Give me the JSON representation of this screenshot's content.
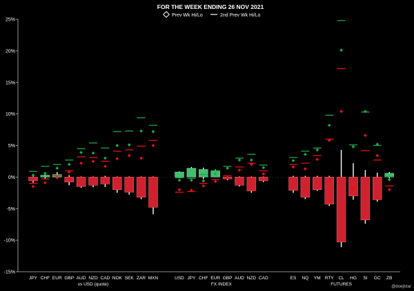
{
  "chart_data": {
    "type": "bar",
    "title": "FOR THE WEEK ENDING  26 NOV 2021",
    "legend": [
      {
        "symbol": "diamond-icon",
        "label": "Prev Wk Hi/Lo"
      },
      {
        "symbol": "dash-icon",
        "label": "2nd Prev Wk Hi/Lo"
      }
    ],
    "ylim": [
      -15,
      25
    ],
    "yticks": [
      -15,
      -10,
      -5,
      0,
      5,
      10,
      15,
      20,
      25
    ],
    "ytick_suffix": "%",
    "grid": false,
    "groups": [
      {
        "name": "vs USD (quote)",
        "items": [
          {
            "label": "JPY",
            "value": -0.6,
            "wick": [
              -0.9,
              0.3
            ],
            "prev_hi": 0.3,
            "prev_lo": -1.5,
            "prev2_hi": 0.9,
            "prev2_lo": -1.0
          },
          {
            "label": "CHF",
            "value": 0.3,
            "wick": [
              -0.3,
              0.5
            ],
            "prev_hi": 0.6,
            "prev2_hi": 1.7,
            "prev_lo": -0.9,
            "prev2_lo": -0.3
          },
          {
            "label": "EUR",
            "value": 0.4,
            "wick": [
              -0.1,
              0.8
            ],
            "prev_hi": 1.4,
            "prev2_hi": 2.0,
            "prev_lo": -0.1,
            "prev2_lo": 0.2
          },
          {
            "label": "GBP",
            "value": -0.8,
            "wick": [
              -1.3,
              0.3
            ],
            "prev_hi": 2.0,
            "prev2_hi": 2.7,
            "prev_lo": 0.8,
            "prev2_lo": 1.0
          },
          {
            "label": "AUD",
            "value": -1.5,
            "wick": [
              -1.7,
              0.1
            ],
            "prev_hi": 3.9,
            "prev2_hi": 4.5,
            "prev_lo": 2.2,
            "prev2_lo": 3.2
          },
          {
            "label": "NZD",
            "value": -1.3,
            "wick": [
              -1.6,
              0.1
            ],
            "prev_hi": 3.8,
            "prev2_hi": 5.4,
            "prev_lo": 2.5,
            "prev2_lo": 3.1
          },
          {
            "label": "CAD",
            "value": -1.1,
            "wick": [
              -1.6,
              0.2
            ],
            "prev_hi": 3.0,
            "prev2_hi": 4.6,
            "prev_lo": 1.7,
            "prev2_lo": 2.5
          },
          {
            "label": "NOK",
            "value": -2.0,
            "wick": [
              -2.5,
              0.1
            ],
            "prev_hi": 5.0,
            "prev2_hi": 7.2,
            "prev_lo": 2.9,
            "prev2_lo": 4.1
          },
          {
            "label": "SEK",
            "value": -2.4,
            "wick": [
              -2.8,
              0.1
            ],
            "prev_hi": 5.1,
            "prev2_hi": 7.3,
            "prev_lo": 3.4,
            "prev2_lo": 4.3
          },
          {
            "label": "ZAR",
            "value": -3.2,
            "wick": [
              -3.5,
              0.1
            ],
            "prev_hi": 7.3,
            "prev2_hi": 9.4,
            "prev_lo": 3.0,
            "prev2_lo": 4.9
          },
          {
            "label": "MXN",
            "value": -4.8,
            "wick": [
              -5.9,
              0.1
            ],
            "prev_hi": 7.2,
            "prev2_hi": 8.2,
            "prev_lo": 5.0,
            "prev2_lo": 5.8
          }
        ]
      },
      {
        "name": "FX INDEX",
        "items": [
          {
            "label": "USD",
            "value": 0.8,
            "wick": [
              -0.2,
              0.9
            ],
            "prev_hi": -0.5,
            "prev2_hi": -0.1,
            "prev_lo": -2.0,
            "prev2_lo": -2.4
          },
          {
            "label": "JPY",
            "value": 1.4,
            "wick": [
              0.0,
              1.6
            ],
            "prev_hi": -0.5,
            "prev2_hi": -0.2,
            "prev_lo": -2.1,
            "prev2_lo": -2.3
          },
          {
            "label": "CHF",
            "value": 1.2,
            "wick": [
              -0.3,
              1.5
            ],
            "prev_hi": -0.6,
            "prev2_hi": 0.4,
            "prev_lo": -1.4,
            "prev2_lo": -1.0
          },
          {
            "label": "EUR",
            "value": 1.0,
            "wick": [
              0.1,
              1.2
            ],
            "prev_hi": 0.5,
            "prev2_hi": 1.0,
            "prev_lo": -0.7,
            "prev2_lo": -0.4
          },
          {
            "label": "GBP",
            "value": -0.3,
            "wick": [
              -0.5,
              0.2
            ],
            "prev_hi": 1.4,
            "prev2_hi": 1.7,
            "prev_lo": -0.1,
            "prev2_lo": 0.2
          },
          {
            "label": "AUD",
            "value": -1.3,
            "wick": [
              -1.5,
              0.1
            ],
            "prev_hi": 2.7,
            "prev2_hi": 3.0,
            "prev_lo": 1.1,
            "prev2_lo": 1.6
          },
          {
            "label": "NZD",
            "value": -2.2,
            "wick": [
              -2.5,
              0.1
            ],
            "prev_hi": 2.7,
            "prev2_hi": 3.6,
            "prev_lo": 2.0,
            "prev2_lo": 2.2
          },
          {
            "label": "CAD",
            "value": -0.6,
            "wick": [
              -0.8,
              0.1
            ],
            "prev_hi": 1.5,
            "prev2_hi": 1.9,
            "prev_lo": 0.5,
            "prev2_lo": 1.0
          }
        ]
      },
      {
        "name": "FUTURES",
        "items": [
          {
            "label": "ES",
            "value": -2.1,
            "wick": [
              -2.5,
              0.2
            ],
            "prev_hi": 2.6,
            "prev2_hi": 3.1,
            "prev_lo": 1.6,
            "prev2_lo": 2.0
          },
          {
            "label": "NQ",
            "value": -3.2,
            "wick": [
              -3.5,
              0.2
            ],
            "prev_hi": 3.6,
            "prev2_hi": 4.1,
            "prev_lo": 1.3,
            "prev2_lo": 2.2
          },
          {
            "label": "YM",
            "value": -2.0,
            "wick": [
              -2.2,
              0.2
            ],
            "prev_hi": 4.3,
            "prev2_hi": 4.6,
            "prev_lo": 2.8,
            "prev2_lo": 3.4
          },
          {
            "label": "RTY",
            "value": -4.3,
            "wick": [
              -4.6,
              0.2
            ],
            "prev_hi": 8.2,
            "prev2_hi": 9.8,
            "prev_lo": 5.8,
            "prev2_lo": 6.0
          },
          {
            "label": "CL",
            "value": -10.3,
            "wick": [
              -11.1,
              4.3
            ],
            "prev_hi": 20.1,
            "prev2_hi": 24.8,
            "prev_lo": 10.4,
            "prev2_lo": 17.2
          },
          {
            "label": "HG",
            "value": -3.0,
            "wick": [
              -3.6,
              2.2
            ],
            "prev_hi": 4.8,
            "prev2_hi": 5.1,
            "prev_lo": -2.0,
            "prev2_lo": -1.6
          },
          {
            "label": "SI",
            "value": -6.8,
            "wick": [
              -7.4,
              1.1
            ],
            "prev_hi": 10.4,
            "prev2_hi": 10.3,
            "prev_lo": 6.6,
            "prev2_lo": 4.2
          },
          {
            "label": "GC",
            "value": -3.6,
            "wick": [
              -3.9,
              0.7
            ],
            "prev_hi": 5.2,
            "prev2_hi": 5.0,
            "prev_lo": 3.4,
            "prev2_lo": 2.7
          },
          {
            "label": "ZB",
            "value": 0.6,
            "wick": [
              -0.2,
              0.8
            ],
            "prev_hi": -0.4,
            "prev2_hi": 0.1,
            "prev_lo": -2.0,
            "prev2_lo": -1.4
          }
        ]
      }
    ],
    "watermark": "@doejlstar"
  },
  "colors": {
    "background": "#000000",
    "axis": "#bfbfbf",
    "text": "#ffffff",
    "positive": "#3fbf6e",
    "negative": "#d0212f",
    "prev_hi": "#1fa84c",
    "prev_lo": "#e8101c",
    "wick": "#ffffff",
    "gridline": "#3a3a3a"
  }
}
